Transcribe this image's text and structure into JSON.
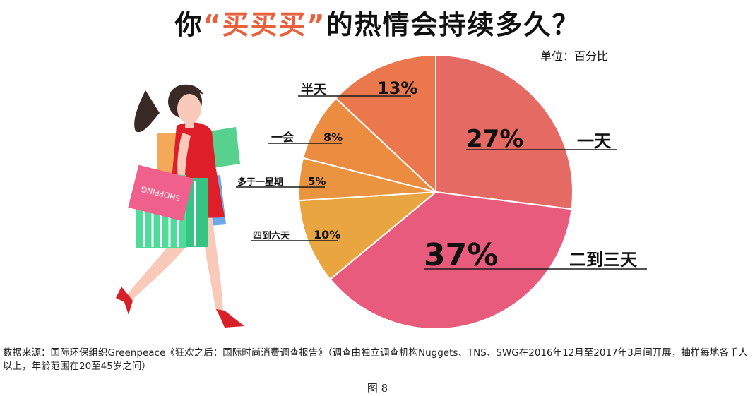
{
  "title": {
    "prefix": "你",
    "highlight": "“买买买”",
    "suffix": "的热情会持续多久？",
    "highlight_color": "#e8603c"
  },
  "unit_label": "单位：百分比",
  "source_text": "数据来源：国际环保组织Greenpeace《狂欢之后：国际时尚消费调查报告》（调查由独立调查机构Nuggets、TNS、SWG在2016年12月至2017年3月间开展，抽样每地各千人以上，年龄范围在20至45岁之间）",
  "figure_label": "图 8",
  "chart_data": {
    "type": "pie",
    "unit": "百分比",
    "start": "12 o'clock, clockwise",
    "slices": [
      {
        "label": "一天",
        "value": 27,
        "display": "27%",
        "color": "#e56a63"
      },
      {
        "label": "二到三天",
        "value": 37,
        "display": "37%",
        "color": "#e85b7c"
      },
      {
        "label": "四到六天",
        "value": 10,
        "display": "10%",
        "color": "#e9a53f"
      },
      {
        "label": "多于一星期",
        "value": 5,
        "display": "5%",
        "color": "#ea943f"
      },
      {
        "label": "一会",
        "value": 8,
        "display": "8%",
        "color": "#eb8c41"
      },
      {
        "label": "半天",
        "value": 13,
        "display": "13%",
        "color": "#ea784c"
      }
    ]
  },
  "illustration": {
    "name": "shopping woman illustration",
    "bag_text": "SHOPPING"
  }
}
